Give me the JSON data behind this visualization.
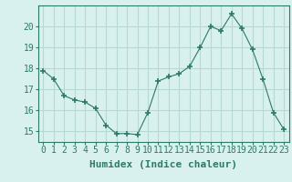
{
  "x": [
    0,
    1,
    2,
    3,
    4,
    5,
    6,
    7,
    8,
    9,
    10,
    11,
    12,
    13,
    14,
    15,
    16,
    17,
    18,
    19,
    20,
    21,
    22,
    23
  ],
  "y": [
    17.9,
    17.5,
    16.7,
    16.5,
    16.4,
    16.1,
    15.3,
    14.9,
    14.9,
    14.85,
    15.9,
    17.4,
    17.6,
    17.75,
    18.1,
    19.0,
    20.0,
    19.8,
    20.6,
    19.9,
    18.9,
    17.5,
    15.9,
    15.1
  ],
  "line_color": "#2d7a6a",
  "marker": "+",
  "marker_size": 4,
  "bg_color": "#d8f0ee",
  "grid_color": "#b8d8d4",
  "xlabel": "Humidex (Indice chaleur)",
  "xlim": [
    -0.5,
    23.5
  ],
  "ylim": [
    14.5,
    21.0
  ],
  "yticks": [
    15,
    16,
    17,
    18,
    19,
    20
  ],
  "xticks": [
    0,
    1,
    2,
    3,
    4,
    5,
    6,
    7,
    8,
    9,
    10,
    11,
    12,
    13,
    14,
    15,
    16,
    17,
    18,
    19,
    20,
    21,
    22,
    23
  ],
  "tick_color": "#2d7a6a",
  "label_color": "#2d7a6a",
  "font_size": 7,
  "xlabel_fontsize": 8
}
